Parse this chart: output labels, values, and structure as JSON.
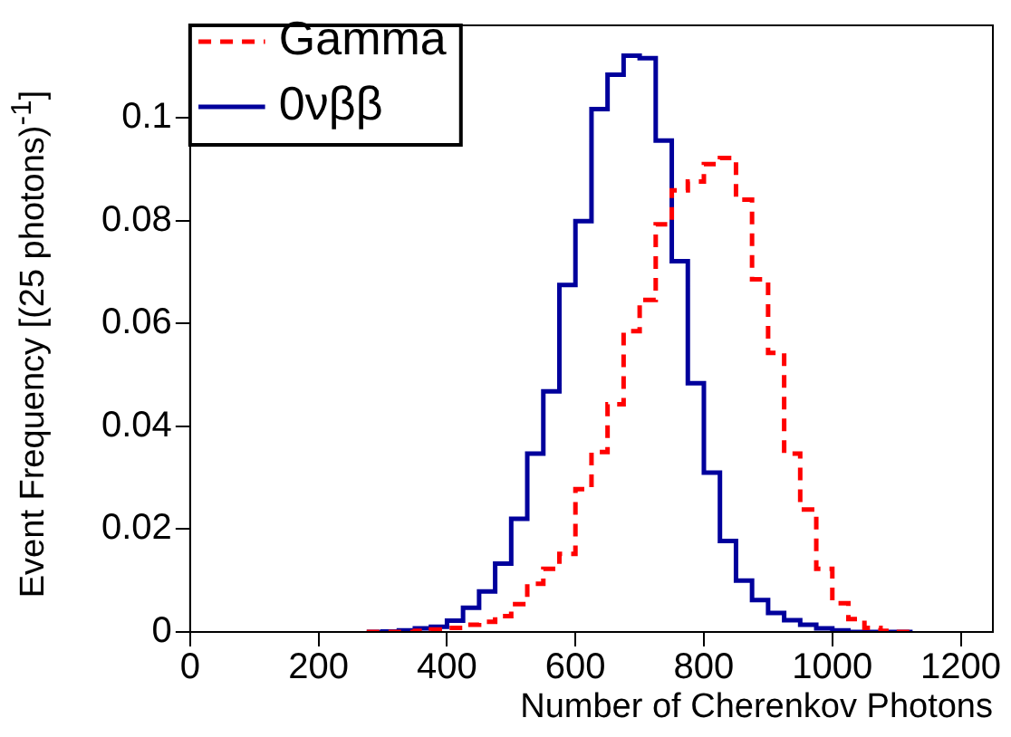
{
  "chart_data": {
    "type": "histogram",
    "xlabel": "Number of Cherenkov Photons",
    "ylabel": "Event Frequency [(25 photons)$^{-1}$]",
    "bins": [
      275,
      300,
      325,
      350,
      375,
      400,
      425,
      450,
      475,
      500,
      525,
      550,
      575,
      600,
      625,
      650,
      675,
      700,
      725,
      750,
      775,
      800,
      825,
      850,
      875,
      900,
      925,
      950,
      975,
      1000,
      1025,
      1050,
      1075,
      1100,
      1125
    ],
    "series": [
      {
        "name": "Gamma",
        "color": "#ff0000",
        "line_style": "dashed",
        "values": [
          0,
          0,
          0,
          0.0002,
          0.0005,
          0.0008,
          0.0014,
          0.002,
          0.0031,
          0.0054,
          0.0094,
          0.0123,
          0.0152,
          0.0278,
          0.035,
          0.0443,
          0.0585,
          0.0646,
          0.0793,
          0.0859,
          0.0876,
          0.091,
          0.0922,
          0.0841,
          0.0686,
          0.0543,
          0.0347,
          0.0238,
          0.0123,
          0.0056,
          0.0025,
          0.0008,
          0.0002,
          0
        ]
      },
      {
        "name": "0νββ",
        "color": "#00009c",
        "line_style": "solid",
        "values": [
          0,
          0.0001,
          0.0003,
          0.0007,
          0.001,
          0.0022,
          0.0047,
          0.0079,
          0.0133,
          0.022,
          0.0347,
          0.0468,
          0.0675,
          0.0799,
          0.1017,
          0.1084,
          0.1121,
          0.1116,
          0.0956,
          0.0721,
          0.0484,
          0.031,
          0.0177,
          0.01,
          0.0062,
          0.0037,
          0.0023,
          0.0014,
          0.0007,
          0.0003,
          0,
          0,
          0,
          0
        ]
      }
    ],
    "xlim": [
      0,
      1250
    ],
    "xticks": [
      0,
      200,
      400,
      600,
      800,
      1000,
      1200
    ],
    "ylim": [
      0,
      0.118
    ],
    "yticks": [
      0,
      0.02,
      0.04,
      0.06,
      0.08,
      0.1
    ],
    "grid": false,
    "legend": "top left"
  }
}
